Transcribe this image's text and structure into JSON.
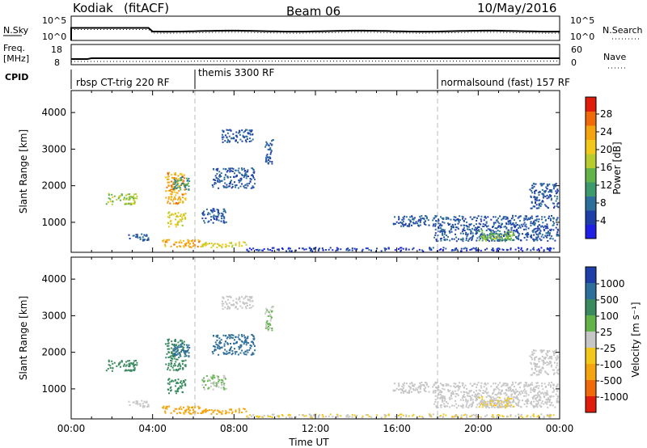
{
  "header": {
    "station": "Kodiak",
    "algorithm": "(fitACF)",
    "beam": "Beam 06",
    "date": "10/May/2016"
  },
  "strips": {
    "nsky_label": "N.Sky",
    "nsearch_label": "N.Search",
    "noise_ticks": [
      "10^5",
      "10^0"
    ],
    "freq_label_1": "Freq.",
    "freq_label_2": "[MHz]",
    "freq_ticks": [
      "18",
      "8"
    ],
    "nave_label": "Nave",
    "nave_ticks": [
      "60",
      "0"
    ],
    "cpid_label": "CPID"
  },
  "modes": [
    {
      "name": "rbsp CT-trig 220 RF",
      "start_hour": 0
    },
    {
      "name": "themis 3300 RF",
      "start_hour": 6
    },
    {
      "name": "normalsound (fast) 157 RF",
      "start_hour": 18
    }
  ],
  "panels": {
    "ylabel": "Slant Range [km]",
    "yticks": [
      1000,
      2000,
      3000,
      4000
    ],
    "xlabel": "Time UT",
    "xticks": [
      "00:00",
      "04:00",
      "08:00",
      "12:00",
      "16:00",
      "20:00",
      "00:00"
    ],
    "power_label": "Power [dB]",
    "power_ticks": [
      "4",
      "8",
      "12",
      "16",
      "20",
      "24",
      "28"
    ],
    "velocity_label": "Velocity [m s⁻¹]",
    "velocity_ticks": [
      "1000",
      "500",
      "100",
      "25",
      "-25",
      "-100",
      "-500",
      "-1000"
    ]
  },
  "colors": {
    "power_scale": [
      "#1f1fe6",
      "#1f3fa8",
      "#2e6e9a",
      "#3e9a6c",
      "#62b44a",
      "#b9cc2e",
      "#f2c81a",
      "#f4a40e",
      "#ee6a0a",
      "#e01c0c"
    ],
    "velocity_scale": [
      "#1f3fa8",
      "#2e6e9a",
      "#3a8a60",
      "#62b44a",
      "#c6c6c6",
      "#f2c81a",
      "#f4a40e",
      "#ee6a0a",
      "#e01c0c"
    ]
  },
  "chart_data": {
    "type": "heatmap",
    "x_range_hours": [
      0,
      24
    ],
    "y_range_km": [
      180,
      4600
    ],
    "mode_boundaries_hours": [
      6,
      18
    ],
    "echo_regions": [
      {
        "t0": 1.7,
        "t1": 3.2,
        "r0": 1500,
        "r1": 1800,
        "power": 18,
        "velocity": 100
      },
      {
        "t0": 2.8,
        "t1": 3.8,
        "r0": 500,
        "r1": 700,
        "power": 8,
        "velocity": 0
      },
      {
        "t0": 4.4,
        "t1": 6.3,
        "r0": 330,
        "r1": 550,
        "power": 24,
        "velocity": -100
      },
      {
        "t0": 6.3,
        "t1": 8.6,
        "r0": 330,
        "r1": 480,
        "power": 20,
        "velocity": -80
      },
      {
        "t0": 8.6,
        "t1": 23.8,
        "r0": 230,
        "r1": 330,
        "power": 6,
        "velocity": -25
      },
      {
        "t0": 4.6,
        "t1": 5.6,
        "r0": 1500,
        "r1": 2400,
        "power": 24,
        "velocity": 100
      },
      {
        "t0": 4.7,
        "t1": 5.6,
        "r0": 900,
        "r1": 1300,
        "power": 20,
        "velocity": 100
      },
      {
        "t0": 5.0,
        "t1": 5.8,
        "r0": 1900,
        "r1": 2300,
        "power": 12,
        "velocity": 500
      },
      {
        "t0": 6.9,
        "t1": 9.0,
        "r0": 1950,
        "r1": 2500,
        "power": 8,
        "velocity": 500
      },
      {
        "t0": 7.3,
        "t1": 8.9,
        "r0": 3200,
        "r1": 3550,
        "power": 8,
        "velocity": 0
      },
      {
        "t0": 6.4,
        "t1": 7.6,
        "r0": 1000,
        "r1": 1400,
        "power": 8,
        "velocity": 25
      },
      {
        "t0": 9.5,
        "t1": 9.9,
        "r0": 2600,
        "r1": 3300,
        "power": 8,
        "velocity": 25
      },
      {
        "t0": 15.8,
        "t1": 18.0,
        "r0": 900,
        "r1": 1200,
        "power": 8,
        "velocity": 0
      },
      {
        "t0": 17.8,
        "t1": 23.9,
        "r0": 500,
        "r1": 1200,
        "power": 8,
        "velocity": 0
      },
      {
        "t0": 20.0,
        "t1": 21.8,
        "r0": 500,
        "r1": 800,
        "power": 16,
        "velocity": -25
      },
      {
        "t0": 22.5,
        "t1": 23.9,
        "r0": 1400,
        "r1": 2100,
        "power": 8,
        "velocity": 0
      }
    ]
  }
}
